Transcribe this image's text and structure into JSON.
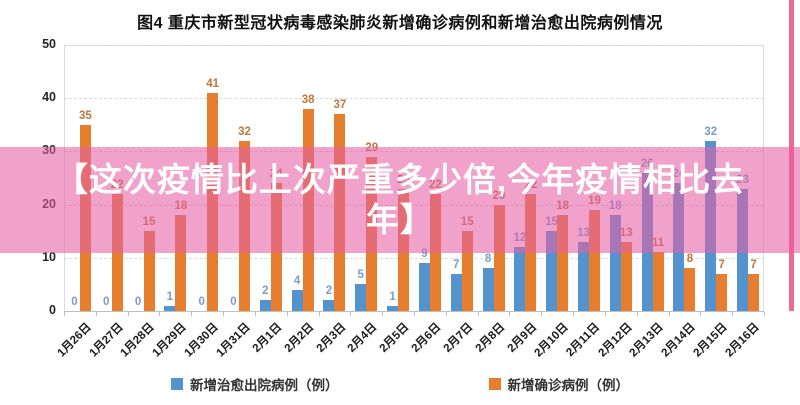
{
  "title": "图4  重庆市新型冠状病毒感染肺炎新增确诊病例和新增治愈出院病例情况",
  "overlay": {
    "text": "【这次疫情比上次严重多少倍,今年疫情相比去年】",
    "band_color": "rgba(230,95,165,0.58)"
  },
  "legend": [
    {
      "label": "新增治愈出院病例（例）",
      "color": "#5593CE"
    },
    {
      "label": "新增确诊病例（例）",
      "color": "#E77E2E"
    }
  ],
  "accent_colors": {
    "red_edge_line": "#EE6A8E",
    "gridline": "#d9d9d9",
    "axis": "#bfbfbf"
  },
  "chart_data": {
    "type": "bar",
    "title": "图4  重庆市新型冠状病毒感染肺炎新增确诊病例和新增治愈出院病例情况",
    "categories": [
      "1月26日",
      "1月27日",
      "1月28日",
      "1月29日",
      "1月30日",
      "1月31日",
      "2月1日",
      "2月2日",
      "2月3日",
      "2月4日",
      "2月5日",
      "2月6日",
      "2月7日",
      "2月8日",
      "2月9日",
      "2月10日",
      "2月11日",
      "2月12日",
      "2月13日",
      "2月14日",
      "2月15日",
      "2月16日"
    ],
    "series": [
      {
        "name": "新增治愈出院病例（例）",
        "color": "#5593CE",
        "label_color": "#7B9CC9",
        "values": [
          0,
          0,
          0,
          1,
          0,
          0,
          2,
          4,
          2,
          5,
          1,
          9,
          7,
          8,
          12,
          15,
          13,
          18,
          26,
          24,
          32,
          23
        ]
      },
      {
        "name": "新增确诊病例（例）",
        "color": "#E77E2E",
        "label_color": "#C0763C",
        "values": [
          35,
          22,
          15,
          18,
          41,
          32,
          24,
          38,
          37,
          29,
          23,
          22,
          15,
          20,
          22,
          18,
          19,
          13,
          11,
          8,
          7,
          7
        ]
      }
    ],
    "xlabel": "",
    "ylabel": "",
    "ylim": [
      0,
      50
    ],
    "y_ticks": [
      0,
      10,
      20,
      30,
      40,
      50
    ],
    "grid": "horizontal-dashed",
    "legend_position": "bottom",
    "data_labels": true
  }
}
